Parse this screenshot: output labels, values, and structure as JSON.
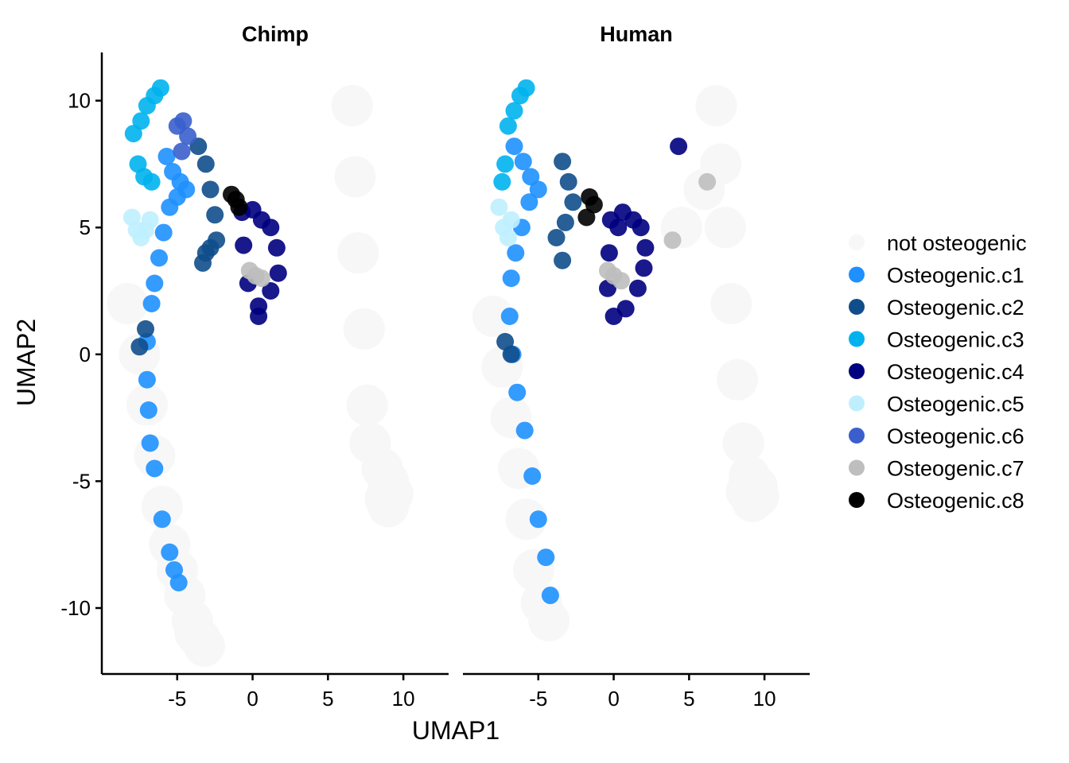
{
  "chart_data": {
    "type": "scatter",
    "xlabel": "UMAP1",
    "ylabel": "UMAP2",
    "xlim": [
      -10,
      13
    ],
    "ylim": [
      -12.6,
      11.9
    ],
    "x_ticks": [
      -5,
      0,
      5,
      10
    ],
    "x_tick_labels": [
      "-5",
      "0",
      "5",
      "10"
    ],
    "y_ticks": [
      -10,
      -5,
      0,
      5,
      10
    ],
    "y_tick_labels": [
      "-10",
      "-5",
      "0",
      "5",
      "10"
    ],
    "grid": false,
    "legend_position": "right",
    "legend": [
      {
        "label": "not osteogenic",
        "color": "#f7f7f7"
      },
      {
        "label": "Osteogenic.c1",
        "color": "#1e90ff"
      },
      {
        "label": "Osteogenic.c2",
        "color": "#104e8b"
      },
      {
        "label": "Osteogenic.c3",
        "color": "#00b2ee"
      },
      {
        "label": "Osteogenic.c4",
        "color": "#000080"
      },
      {
        "label": "Osteogenic.c5",
        "color": "#bfefff"
      },
      {
        "label": "Osteogenic.c6",
        "color": "#3a5fcd"
      },
      {
        "label": "Osteogenic.c7",
        "color": "#bebebe"
      },
      {
        "label": "Osteogenic.c8",
        "color": "#000000"
      }
    ],
    "panels": [
      {
        "title": "Chimp",
        "clusters": [
          {
            "cluster": "not osteogenic",
            "x": [
              -8.3,
              -7.5,
              -7.0,
              -6.5,
              -6.0,
              -5.5,
              -5.0,
              -4.5,
              -4.0,
              -3.8,
              -3.5,
              -3.2,
              6.6,
              6.8,
              7.0,
              7.4,
              7.6,
              7.8,
              8.6,
              9.0,
              9.3,
              9.0,
              8.8
            ],
            "y": [
              2.0,
              0.0,
              -2.0,
              -4.0,
              -6.0,
              -7.5,
              -8.5,
              -9.5,
              -10.5,
              -11.0,
              -11.2,
              -11.5,
              9.8,
              7.0,
              4.0,
              1.0,
              -2.0,
              -3.5,
              -4.5,
              -5.0,
              -5.5,
              -6.0,
              -5.7
            ]
          },
          {
            "cluster": "Osteogenic.c1",
            "x": [
              -5.7,
              -5.3,
              -4.8,
              -4.4,
              -5.0,
              -5.5,
              -5.9,
              -6.2,
              -6.5,
              -6.7,
              -7.0,
              -7.0,
              -6.9,
              -6.8,
              -6.5,
              -6.0,
              -5.5,
              -5.2,
              -4.9
            ],
            "y": [
              7.8,
              7.2,
              6.8,
              6.5,
              6.2,
              5.8,
              4.8,
              3.8,
              2.8,
              2.0,
              0.5,
              -1.0,
              -2.2,
              -3.5,
              -4.5,
              -6.5,
              -7.8,
              -8.5,
              -9.0
            ]
          },
          {
            "cluster": "Osteogenic.c2",
            "x": [
              -3.6,
              -3.1,
              -2.8,
              -2.5,
              -2.4,
              -2.8,
              -3.1,
              -3.3,
              -7.1,
              -7.5
            ],
            "y": [
              8.2,
              7.5,
              6.5,
              5.5,
              4.5,
              4.2,
              4.0,
              3.6,
              1.0,
              0.3
            ]
          },
          {
            "cluster": "Osteogenic.c3",
            "x": [
              -7.9,
              -7.4,
              -7.0,
              -6.5,
              -6.1,
              -7.6,
              -7.2,
              -6.7
            ],
            "y": [
              8.7,
              9.2,
              9.8,
              10.2,
              10.5,
              7.5,
              7.0,
              6.8
            ]
          },
          {
            "cluster": "Osteogenic.c4",
            "x": [
              -0.7,
              0.0,
              0.6,
              1.2,
              1.6,
              1.7,
              1.2,
              0.4,
              -0.3,
              -0.6,
              0.4
            ],
            "y": [
              5.6,
              5.7,
              5.3,
              5.0,
              4.2,
              3.2,
              2.5,
              1.9,
              2.8,
              4.3,
              1.5
            ]
          },
          {
            "cluster": "Osteogenic.c5",
            "x": [
              -8.0,
              -7.7,
              -7.4,
              -7.1,
              -6.8
            ],
            "y": [
              5.4,
              4.9,
              4.6,
              4.9,
              5.3
            ]
          },
          {
            "cluster": "Osteogenic.c6",
            "x": [
              -5.0,
              -4.6,
              -4.3,
              -4.7
            ],
            "y": [
              9.0,
              9.2,
              8.6,
              8.0
            ]
          },
          {
            "cluster": "Osteogenic.c7",
            "x": [
              -0.2,
              0.2,
              0.6
            ],
            "y": [
              3.3,
              3.1,
              3.0
            ]
          },
          {
            "cluster": "Osteogenic.c8",
            "x": [
              -1.4,
              -1.1,
              -0.9
            ],
            "y": [
              6.3,
              6.1,
              5.8
            ]
          }
        ]
      },
      {
        "title": "Human",
        "clusters": [
          {
            "cluster": "not osteogenic",
            "x": [
              -8.0,
              -7.4,
              -6.8,
              -6.3,
              -5.8,
              -5.3,
              -4.8,
              -4.3,
              6.8,
              7.1,
              7.4,
              7.8,
              8.2,
              8.6,
              9.0,
              9.5,
              9.6,
              9.2,
              8.8,
              4.5,
              6.0
            ],
            "y": [
              1.5,
              -0.5,
              -2.5,
              -4.5,
              -6.5,
              -8.5,
              -9.8,
              -10.5,
              9.8,
              7.5,
              5.0,
              2.0,
              -1.0,
              -3.5,
              -4.8,
              -5.2,
              -5.6,
              -5.8,
              -5.4,
              5.0,
              6.5
            ]
          },
          {
            "cluster": "Osteogenic.c1",
            "x": [
              -6.6,
              -6.0,
              -5.5,
              -5.0,
              -5.6,
              -6.1,
              -6.5,
              -6.8,
              -6.9,
              -6.7,
              -6.4,
              -5.9,
              -5.4,
              -5.0,
              -4.5,
              -4.2
            ],
            "y": [
              8.2,
              7.6,
              7.0,
              6.5,
              6.0,
              5.0,
              4.0,
              3.0,
              1.5,
              0.0,
              -1.5,
              -3.0,
              -4.8,
              -6.5,
              -8.0,
              -9.5
            ]
          },
          {
            "cluster": "Osteogenic.c2",
            "x": [
              -3.4,
              -3.0,
              -2.7,
              -3.2,
              -3.8,
              -3.4,
              -7.2,
              -6.8
            ],
            "y": [
              7.6,
              6.8,
              6.0,
              5.2,
              4.6,
              3.7,
              0.5,
              0.0
            ]
          },
          {
            "cluster": "Osteogenic.c3",
            "x": [
              -7.0,
              -6.6,
              -6.2,
              -5.8,
              -7.2,
              -7.4
            ],
            "y": [
              9.0,
              9.6,
              10.2,
              10.5,
              7.5,
              6.8
            ]
          },
          {
            "cluster": "Osteogenic.c4",
            "x": [
              -0.2,
              0.6,
              1.3,
              1.8,
              2.1,
              2.0,
              1.6,
              0.8,
              0.0,
              -0.4,
              -0.3,
              0.3,
              4.3
            ],
            "y": [
              5.3,
              5.6,
              5.3,
              5.0,
              4.2,
              3.4,
              2.6,
              1.8,
              1.5,
              2.6,
              4.0,
              5.0,
              8.2
            ]
          },
          {
            "cluster": "Osteogenic.c5",
            "x": [
              -7.6,
              -7.3,
              -7.0,
              -6.8
            ],
            "y": [
              5.8,
              5.0,
              4.6,
              5.3
            ]
          },
          {
            "cluster": "Osteogenic.c7",
            "x": [
              -0.4,
              0.0,
              0.5,
              6.2,
              3.9
            ],
            "y": [
              3.3,
              3.1,
              2.9,
              6.8,
              4.5
            ]
          },
          {
            "cluster": "Osteogenic.c8",
            "x": [
              -1.6,
              -1.3,
              -1.8
            ],
            "y": [
              6.2,
              5.9,
              5.4
            ]
          }
        ]
      }
    ]
  }
}
